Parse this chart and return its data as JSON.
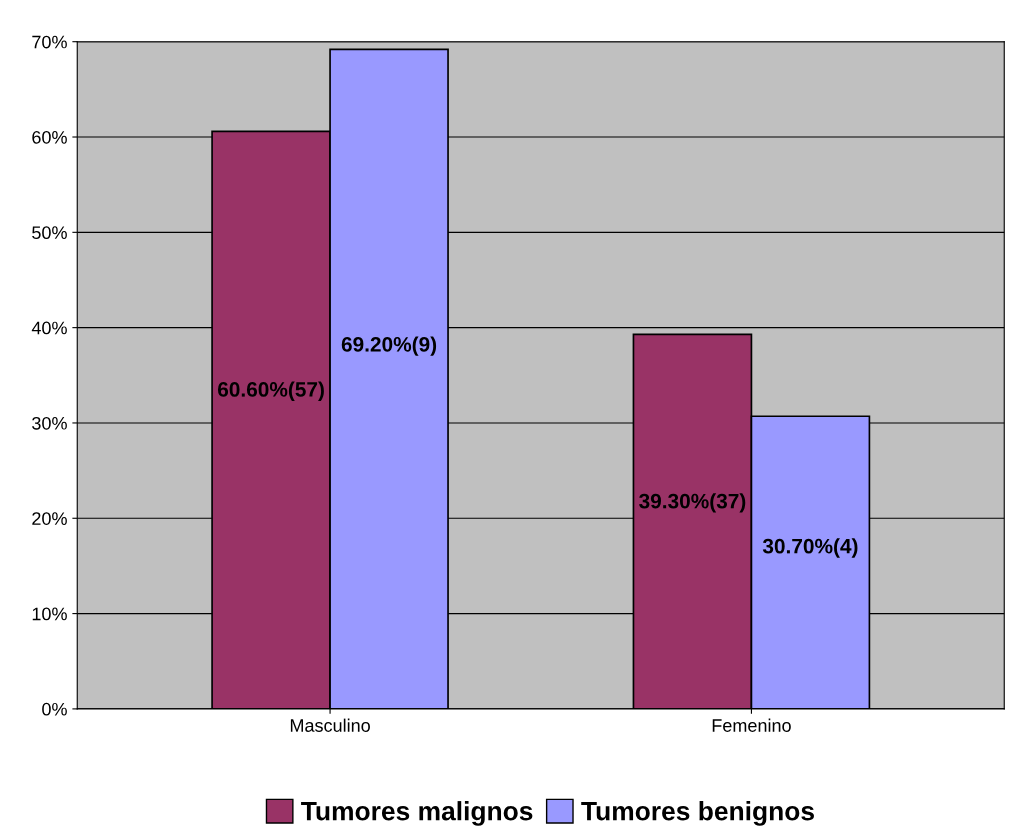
{
  "chart_data": {
    "type": "bar",
    "categories": [
      "Masculino",
      "Femenino"
    ],
    "series": [
      {
        "name": "Tumores malignos",
        "color": "#993366",
        "values": [
          60.6,
          39.3
        ],
        "value_labels": [
          "60.60%(57)",
          "39.30%(37)"
        ]
      },
      {
        "name": "Tumores benignos",
        "color": "#9999ff",
        "values": [
          69.2,
          30.7
        ],
        "value_labels": [
          "69.20%(9)",
          "30.70%(4)"
        ]
      }
    ],
    "ylim": [
      0,
      70
    ],
    "yticks": [
      {
        "value": 0,
        "label": "0%"
      },
      {
        "value": 10,
        "label": "10%"
      },
      {
        "value": 20,
        "label": "20%"
      },
      {
        "value": 30,
        "label": "30%"
      },
      {
        "value": 40,
        "label": "40%"
      },
      {
        "value": 50,
        "label": "50%"
      },
      {
        "value": 60,
        "label": "60%"
      },
      {
        "value": 70,
        "label": "70%"
      }
    ],
    "grid": "y",
    "legend": "bottom"
  }
}
